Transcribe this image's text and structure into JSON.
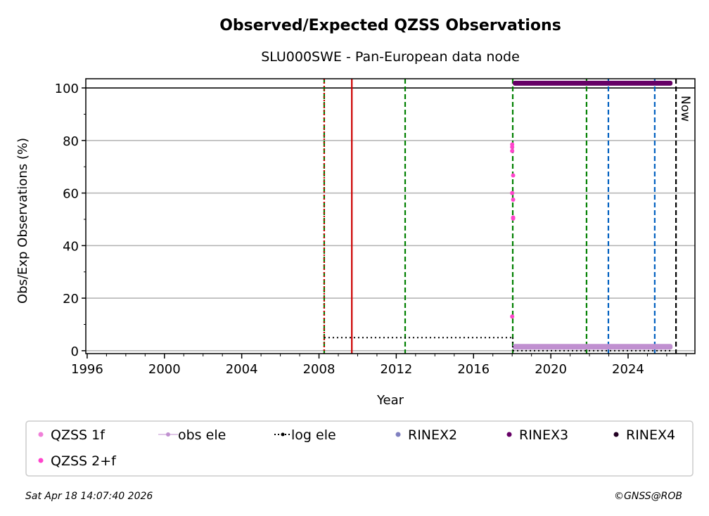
{
  "chart_data": {
    "type": "scatter",
    "title": "Observed/Expected QZSS Observations",
    "subtitle": "SLU000SWE - Pan-European data node",
    "xlabel": "Year",
    "ylabel": "Obs/Exp Observations (%)",
    "xlim": [
      1995.93,
      2027.46
    ],
    "ylim": [
      -1.1,
      103.5
    ],
    "xticks": [
      1996,
      2000,
      2004,
      2008,
      2012,
      2016,
      2020,
      2024
    ],
    "yticks": [
      0,
      20,
      40,
      60,
      80,
      100
    ],
    "grid": "horizontal",
    "reference_line": 100,
    "vlines": [
      {
        "x": 2008.27,
        "color": "#008000",
        "style": "dashed"
      },
      {
        "x": 2008.27,
        "color": "#cc0000",
        "style": "dotted"
      },
      {
        "x": 2009.7,
        "color": "#cc0000",
        "style": "solid"
      },
      {
        "x": 2012.46,
        "color": "#008000",
        "style": "dashed"
      },
      {
        "x": 2018.03,
        "color": "#008000",
        "style": "dashed"
      },
      {
        "x": 2021.85,
        "color": "#008000",
        "style": "dashed"
      },
      {
        "x": 2022.98,
        "color": "#0060c0",
        "style": "dashed"
      },
      {
        "x": 2025.38,
        "color": "#0060c0",
        "style": "dashed"
      },
      {
        "x": 2026.48,
        "color": "#000000",
        "style": "dashed"
      }
    ],
    "now_label": "Now",
    "series": [
      {
        "name": "QZSS 1f",
        "color": "#f080d8",
        "points": []
      },
      {
        "name": "QZSS 2+f",
        "color": "#ff44cc",
        "points": [
          [
            2018.0,
            78.5
          ],
          [
            2018.0,
            77.5
          ],
          [
            2018.0,
            76
          ],
          [
            2018.05,
            66.7
          ],
          [
            2018.0,
            60
          ],
          [
            2018.05,
            57.5
          ],
          [
            2018.05,
            50.7
          ],
          [
            2018.05,
            50.3
          ],
          [
            2018.0,
            13
          ]
        ]
      },
      {
        "name": "obs ele",
        "color": "#c090d0",
        "x_range": [
          2018.03,
          2026.3
        ],
        "value": 1.5
      },
      {
        "name": "log ele",
        "color": "#000000",
        "segments": [
          [
            2008.27,
            5,
            2018.03,
            5
          ],
          [
            2018.03,
            5,
            2018.03,
            0
          ],
          [
            2018.03,
            0,
            2026.3,
            0
          ]
        ]
      },
      {
        "name": "RINEX2",
        "color": "#8080c0",
        "points": []
      },
      {
        "name": "RINEX3",
        "color": "#660066",
        "x_range": [
          2018.03,
          2026.3
        ],
        "value": 101.8
      },
      {
        "name": "RINEX4",
        "color": "#220022",
        "points": []
      }
    ],
    "legend_position": "bottom"
  },
  "footer": {
    "timestamp": "Sat Apr 18 14:07:40 2026",
    "credit": "©GNSS@ROB"
  }
}
